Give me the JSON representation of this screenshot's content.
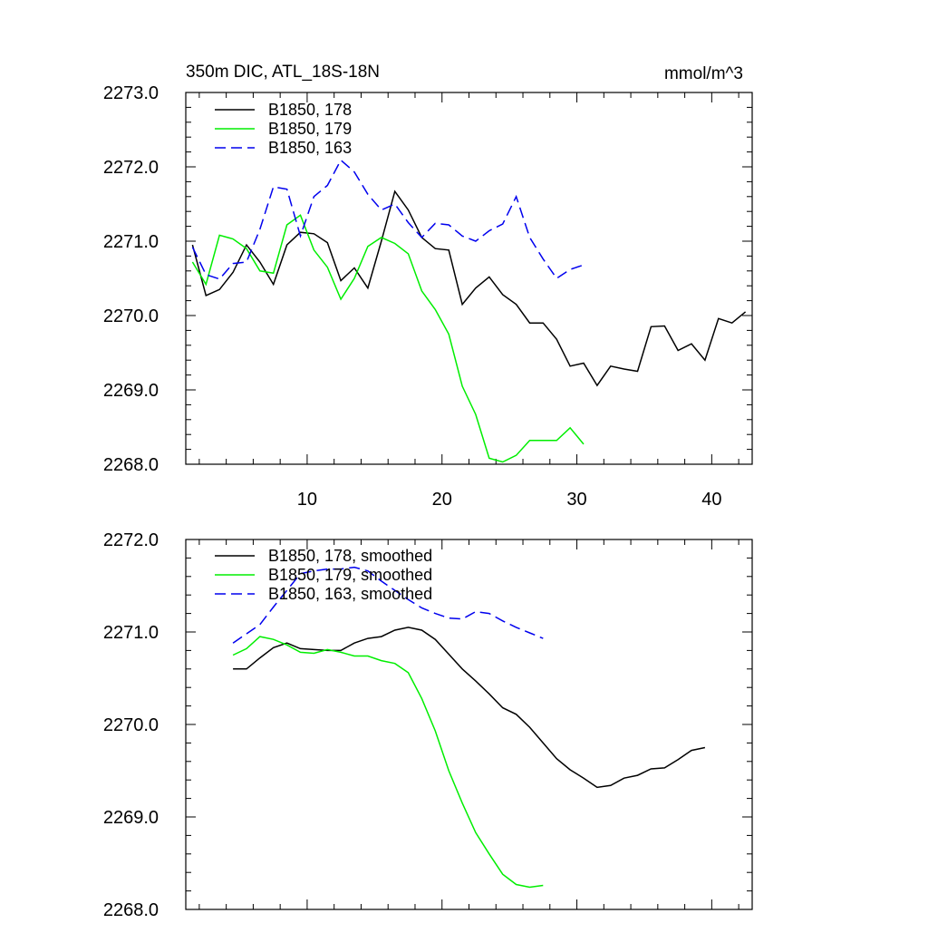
{
  "chart_data": [
    {
      "type": "line",
      "title": "350m DIC, ATL_18S-18N",
      "unit_label": "mmol/m^3",
      "xlabel": "",
      "ylabel": "",
      "xlim": [
        1,
        43
      ],
      "ylim": [
        2268.0,
        2273.0
      ],
      "xticks": [
        10,
        20,
        30,
        40
      ],
      "yticks": [
        2268.0,
        2269.0,
        2270.0,
        2271.0,
        2272.0,
        2273.0
      ],
      "ytick_labels": [
        "2268.0",
        "2269.0",
        "2270.0",
        "2271.0",
        "2272.0",
        "2273.0"
      ],
      "show_xtick_labels": true,
      "legend_position": "top-left",
      "series": [
        {
          "name": "B1850, 178",
          "color": "#000000",
          "dash": "solid",
          "x": [
            1.5,
            2.5,
            3.5,
            4.5,
            5.5,
            6.5,
            7.5,
            8.5,
            9.5,
            10.5,
            11.5,
            12.5,
            13.5,
            14.5,
            15.5,
            16.5,
            17.5,
            18.5,
            19.5,
            20.5,
            21.5,
            22.5,
            23.5,
            24.5,
            25.5,
            26.5,
            27.5,
            28.5,
            29.5,
            30.5,
            31.5,
            32.5,
            33.5,
            34.5,
            35.5,
            36.5,
            37.5,
            38.5,
            39.5,
            40.5,
            41.5,
            42.5
          ],
          "y": [
            2270.95,
            2270.27,
            2270.35,
            2270.58,
            2270.95,
            2270.72,
            2270.42,
            2270.95,
            2271.12,
            2271.1,
            2270.98,
            2270.47,
            2270.64,
            2270.37,
            2271.0,
            2271.67,
            2271.42,
            2271.05,
            2270.9,
            2270.88,
            2270.15,
            2270.37,
            2270.52,
            2270.28,
            2270.15,
            2269.9,
            2269.9,
            2269.68,
            2269.32,
            2269.36,
            2269.06,
            2269.32,
            2269.28,
            2269.25,
            2269.85,
            2269.86,
            2269.53,
            2269.62,
            2269.4,
            2269.96,
            2269.9,
            2270.05
          ]
        },
        {
          "name": "B1850, 179",
          "color": "#00ee00",
          "dash": "solid",
          "x": [
            1.5,
            2.5,
            3.5,
            4.5,
            5.5,
            6.5,
            7.5,
            8.5,
            9.5,
            10.5,
            11.5,
            12.5,
            13.5,
            14.5,
            15.5,
            16.5,
            17.5,
            18.5,
            19.5,
            20.5,
            21.5,
            22.5,
            23.5,
            24.5,
            25.5,
            26.5,
            27.5,
            28.5,
            29.5,
            30.5
          ],
          "y": [
            2270.72,
            2270.42,
            2271.08,
            2271.03,
            2270.9,
            2270.6,
            2270.57,
            2271.22,
            2271.35,
            2270.88,
            2270.65,
            2270.22,
            2270.5,
            2270.93,
            2271.05,
            2270.97,
            2270.83,
            2270.33,
            2270.08,
            2269.75,
            2269.05,
            2268.67,
            2268.08,
            2268.03,
            2268.12,
            2268.32,
            2268.32,
            2268.32,
            2268.49,
            2268.27
          ]
        },
        {
          "name": "B1850, 163",
          "color": "#0000ee",
          "dash": "dashed",
          "x": [
            1.5,
            2.5,
            3.5,
            4.5,
            5.5,
            6.5,
            7.5,
            8.5,
            9.5,
            10.5,
            11.5,
            12.5,
            13.5,
            14.5,
            15.5,
            16.5,
            17.5,
            18.5,
            19.5,
            20.5,
            21.5,
            22.5,
            23.5,
            24.5,
            25.5,
            26.5,
            27.5,
            28.5,
            29.5,
            30.5
          ],
          "y": [
            2270.92,
            2270.55,
            2270.49,
            2270.7,
            2270.72,
            2271.16,
            2271.73,
            2271.7,
            2271.07,
            2271.6,
            2271.75,
            2272.09,
            2271.93,
            2271.63,
            2271.42,
            2271.5,
            2271.25,
            2271.05,
            2271.24,
            2271.22,
            2271.07,
            2271.0,
            2271.14,
            2271.23,
            2271.6,
            2271.05,
            2270.76,
            2270.5,
            2270.62,
            2270.68
          ]
        }
      ]
    },
    {
      "type": "line",
      "title": "",
      "unit_label": "",
      "xlabel": "",
      "ylabel": "",
      "xlim": [
        1,
        43
      ],
      "ylim": [
        2268.0,
        2272.0
      ],
      "xticks": [
        10,
        20,
        30,
        40
      ],
      "yticks": [
        2268.0,
        2269.0,
        2270.0,
        2271.0,
        2272.0
      ],
      "ytick_labels": [
        "2268.0",
        "2269.0",
        "2270.0",
        "2271.0",
        "2272.0"
      ],
      "show_xtick_labels": false,
      "legend_position": "top-left",
      "series": [
        {
          "name": "B1850, 178, smoothed",
          "color": "#000000",
          "dash": "solid",
          "x": [
            4.5,
            5.5,
            6.5,
            7.5,
            8.5,
            9.5,
            10.5,
            11.5,
            12.5,
            13.5,
            14.5,
            15.5,
            16.5,
            17.5,
            18.5,
            19.5,
            20.5,
            21.5,
            22.5,
            23.5,
            24.5,
            25.5,
            26.5,
            27.5,
            28.5,
            29.5,
            30.5,
            31.5,
            32.5,
            33.5,
            34.5,
            35.5,
            36.5,
            37.5,
            38.5,
            39.5
          ],
          "y": [
            2270.6,
            2270.6,
            2270.72,
            2270.83,
            2270.88,
            2270.82,
            2270.81,
            2270.8,
            2270.8,
            2270.88,
            2270.93,
            2270.95,
            2271.02,
            2271.05,
            2271.02,
            2270.92,
            2270.76,
            2270.6,
            2270.47,
            2270.33,
            2270.18,
            2270.11,
            2269.97,
            2269.8,
            2269.63,
            2269.51,
            2269.42,
            2269.32,
            2269.34,
            2269.42,
            2269.45,
            2269.52,
            2269.53,
            2269.62,
            2269.72,
            2269.75
          ]
        },
        {
          "name": "B1850, 179, smoothed",
          "color": "#00ee00",
          "dash": "solid",
          "x": [
            4.5,
            5.5,
            6.5,
            7.5,
            8.5,
            9.5,
            10.5,
            11.5,
            12.5,
            13.5,
            14.5,
            15.5,
            16.5,
            17.5,
            18.5,
            19.5,
            20.5,
            21.5,
            22.5,
            23.5,
            24.5,
            25.5,
            26.5,
            27.5
          ],
          "y": [
            2270.75,
            2270.82,
            2270.95,
            2270.92,
            2270.86,
            2270.78,
            2270.77,
            2270.81,
            2270.78,
            2270.74,
            2270.74,
            2270.69,
            2270.66,
            2270.56,
            2270.28,
            2269.93,
            2269.5,
            2269.15,
            2268.83,
            2268.6,
            2268.38,
            2268.27,
            2268.24,
            2268.26
          ]
        },
        {
          "name": "B1850, 163, smoothed",
          "color": "#0000ee",
          "dash": "dashed",
          "x": [
            4.5,
            5.5,
            6.5,
            7.5,
            8.5,
            9.5,
            10.5,
            11.5,
            12.5,
            13.5,
            14.5,
            15.5,
            16.5,
            17.5,
            18.5,
            19.5,
            20.5,
            21.5,
            22.5,
            23.5,
            24.5,
            25.5,
            26.5,
            27.5
          ],
          "y": [
            2270.88,
            2270.98,
            2271.08,
            2271.27,
            2271.45,
            2271.63,
            2271.66,
            2271.68,
            2271.68,
            2271.7,
            2271.66,
            2271.55,
            2271.45,
            2271.35,
            2271.26,
            2271.2,
            2271.15,
            2271.14,
            2271.22,
            2271.2,
            2271.12,
            2271.05,
            2270.99,
            2270.93
          ]
        }
      ]
    }
  ]
}
